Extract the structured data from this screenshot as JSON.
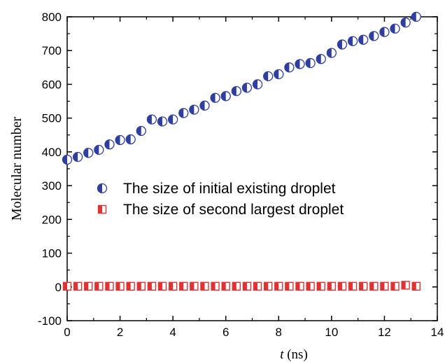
{
  "chart_data": {
    "type": "scatter",
    "title": "",
    "xlabel_italic": "t",
    "xlabel_rest": " (ns)",
    "ylabel": "Molecular number",
    "xlim": [
      0,
      14
    ],
    "ylim": [
      -100,
      800
    ],
    "x_ticks": [
      0,
      2,
      4,
      6,
      8,
      10,
      12,
      14
    ],
    "y_ticks": [
      -100,
      0,
      100,
      200,
      300,
      400,
      500,
      600,
      700,
      800
    ],
    "grid": false,
    "legend_position": "center-left",
    "series": [
      {
        "name": "The size of initial existing droplet",
        "marker": "half-filled-circle",
        "color": "#2f3f9e",
        "x": [
          0,
          0.4,
          0.8,
          1.2,
          1.6,
          2.0,
          2.4,
          2.8,
          3.2,
          3.6,
          4.0,
          4.4,
          4.8,
          5.2,
          5.6,
          6.0,
          6.4,
          6.8,
          7.2,
          7.6,
          8.0,
          8.4,
          8.8,
          9.2,
          9.6,
          10.0,
          10.4,
          10.8,
          11.2,
          11.6,
          12.0,
          12.4,
          12.8,
          13.2
        ],
        "y": [
          377,
          385,
          397,
          406,
          422,
          435,
          437,
          462,
          496,
          490,
          496,
          515,
          525,
          537,
          560,
          565,
          580,
          590,
          600,
          624,
          630,
          650,
          660,
          663,
          675,
          693,
          718,
          728,
          732,
          743,
          755,
          765,
          783,
          800
        ]
      },
      {
        "name": "The size of second largest droplet",
        "marker": "half-filled-square",
        "color": "#e03232",
        "x": [
          0,
          0.4,
          0.8,
          1.2,
          1.6,
          2.0,
          2.4,
          2.8,
          3.2,
          3.6,
          4.0,
          4.4,
          4.8,
          5.2,
          5.6,
          6.0,
          6.4,
          6.8,
          7.2,
          7.6,
          8.0,
          8.4,
          8.8,
          9.2,
          9.6,
          10.0,
          10.4,
          10.8,
          11.2,
          11.6,
          12.0,
          12.4,
          12.8,
          13.2
        ],
        "y": [
          2,
          2,
          2,
          2,
          2,
          2,
          2,
          2,
          2,
          2,
          2,
          2,
          2,
          2,
          2,
          2,
          2,
          2,
          2,
          2,
          2,
          2,
          2,
          2,
          2,
          2,
          2,
          2,
          2,
          2,
          2,
          2,
          5,
          2
        ]
      }
    ]
  }
}
